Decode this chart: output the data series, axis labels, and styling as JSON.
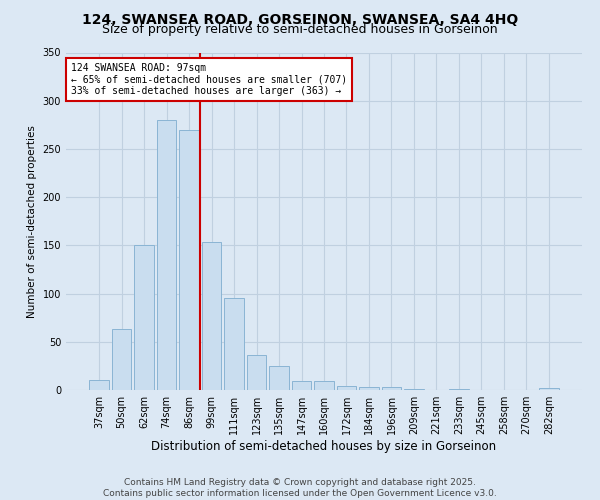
{
  "title_line1": "124, SWANSEA ROAD, GORSEINON, SWANSEA, SA4 4HQ",
  "title_line2": "Size of property relative to semi-detached houses in Gorseinon",
  "xlabel": "Distribution of semi-detached houses by size in Gorseinon",
  "ylabel": "Number of semi-detached properties",
  "categories": [
    "37sqm",
    "50sqm",
    "62sqm",
    "74sqm",
    "86sqm",
    "99sqm",
    "111sqm",
    "123sqm",
    "135sqm",
    "147sqm",
    "160sqm",
    "172sqm",
    "184sqm",
    "196sqm",
    "209sqm",
    "221sqm",
    "233sqm",
    "245sqm",
    "258sqm",
    "270sqm",
    "282sqm"
  ],
  "values": [
    10,
    63,
    150,
    280,
    270,
    153,
    95,
    36,
    25,
    9,
    9,
    4,
    3,
    3,
    1,
    0,
    1,
    0,
    0,
    0,
    2
  ],
  "bar_color": "#c9ddef",
  "bar_edge_color": "#8ab4d4",
  "grid_color": "#c0d0e0",
  "bg_color": "#dce8f4",
  "vline_color": "#cc0000",
  "vline_x": 4.5,
  "annotation_title": "124 SWANSEA ROAD: 97sqm",
  "annotation_line1": "← 65% of semi-detached houses are smaller (707)",
  "annotation_line2": "33% of semi-detached houses are larger (363) →",
  "annotation_box_color": "#ffffff",
  "annotation_box_edge": "#cc0000",
  "footer_line1": "Contains HM Land Registry data © Crown copyright and database right 2025.",
  "footer_line2": "Contains public sector information licensed under the Open Government Licence v3.0.",
  "ylim": [
    0,
    350
  ],
  "yticks": [
    0,
    50,
    100,
    150,
    200,
    250,
    300,
    350
  ],
  "title_fontsize": 10,
  "subtitle_fontsize": 9,
  "xlabel_fontsize": 8.5,
  "ylabel_fontsize": 7.5,
  "tick_fontsize": 7,
  "footer_fontsize": 6.5
}
